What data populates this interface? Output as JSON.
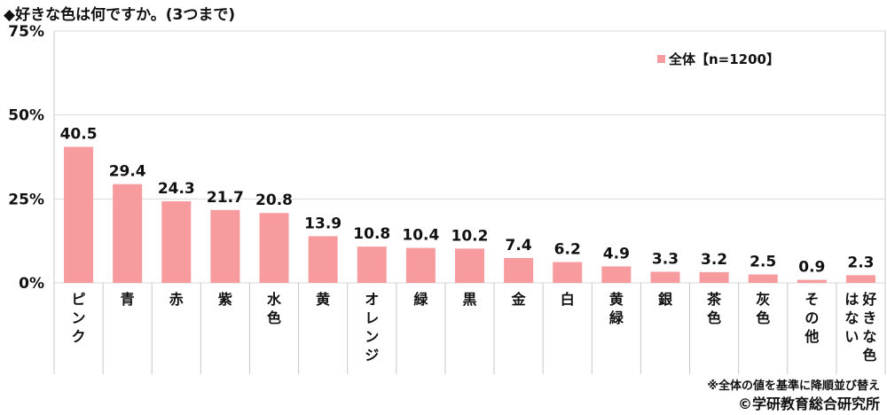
{
  "title": "◆好きな色は何ですか。(3つまで)",
  "footnote": "※全体の値を基準に降順並び替え",
  "copyright": "©学研教育総合研究所",
  "colors": {
    "bar": "#f79b9f",
    "grid": "#d9d9d9",
    "frame": "#c8c8c8"
  },
  "chart_data": {
    "type": "bar",
    "title": "◆好きな色は何ですか。(3つまで)",
    "categories": [
      "ピンク",
      "青",
      "赤",
      "紫",
      "水色",
      "黄",
      "オレンジ",
      "緑",
      "黒",
      "金",
      "白",
      "黄緑",
      "銀",
      "茶色",
      "灰色",
      "その他",
      "好きな色はない"
    ],
    "series": [
      {
        "name": "全体【n=1200】",
        "values": [
          40.5,
          29.4,
          24.3,
          21.7,
          20.8,
          13.9,
          10.8,
          10.4,
          10.2,
          7.4,
          6.2,
          4.9,
          3.3,
          3.2,
          2.5,
          0.9,
          2.3
        ]
      }
    ],
    "value_labels": [
      "40.5",
      "29.4",
      "24.3",
      "21.7",
      "20.8",
      "13.9",
      "10.8",
      "10.4",
      "10.2",
      "7.4",
      "6.2",
      "4.9",
      "3.3",
      "3.2",
      "2.5",
      "0.9",
      "2.3"
    ],
    "ylim": [
      0,
      75
    ],
    "yticks": [
      0,
      25,
      50,
      75
    ],
    "ytick_labels": [
      "0%",
      "25%",
      "50%",
      "75%"
    ],
    "xlabel": "",
    "ylabel": "",
    "grid": true,
    "legend_position": "top-right"
  }
}
